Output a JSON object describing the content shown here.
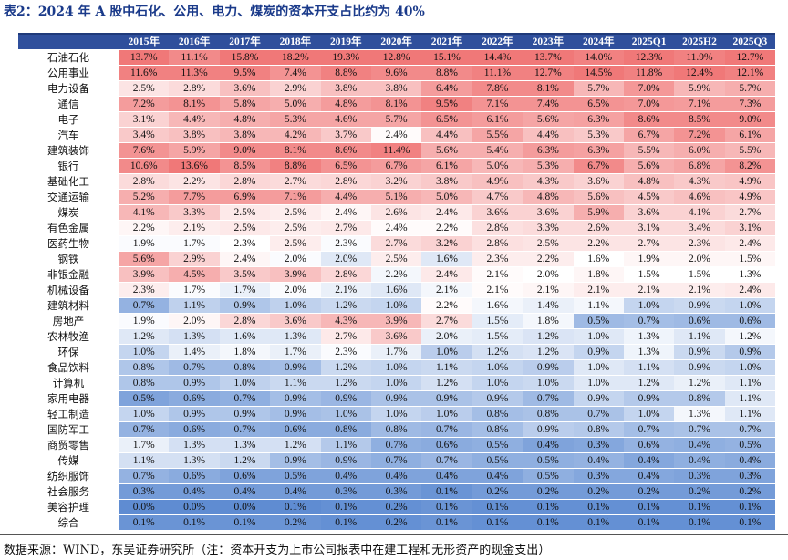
{
  "title": "表2：2024 年 A 股中石化、公用、电力、煤炭的资本开支占比约为 40%",
  "table": {
    "header": [
      "",
      "2015年",
      "2016年",
      "2017年",
      "2018年",
      "2019年",
      "2020年",
      "2021年",
      "2022年",
      "2023年",
      "2024年",
      "2025Q1",
      "2025H2",
      "2025Q3"
    ],
    "rows": [
      {
        "name": "石油石化",
        "values": [
          "13.7%",
          "11.1%",
          "15.8%",
          "18.2%",
          "19.3%",
          "12.8%",
          "15.1%",
          "14.4%",
          "13.7%",
          "14.0%",
          "12.3%",
          "11.9%",
          "12.7%"
        ]
      },
      {
        "name": "公用事业",
        "values": [
          "11.6%",
          "11.3%",
          "9.5%",
          "7.4%",
          "8.8%",
          "9.6%",
          "8.8%",
          "11.1%",
          "12.7%",
          "14.5%",
          "11.8%",
          "12.4%",
          "12.1%"
        ]
      },
      {
        "name": "电力设备",
        "values": [
          "2.5%",
          "2.8%",
          "3.6%",
          "2.9%",
          "3.8%",
          "3.8%",
          "6.4%",
          "7.8%",
          "8.1%",
          "5.7%",
          "7.0%",
          "5.9%",
          "5.7%"
        ]
      },
      {
        "name": "通信",
        "values": [
          "7.2%",
          "8.1%",
          "5.8%",
          "5.0%",
          "4.8%",
          "8.1%",
          "9.5%",
          "7.1%",
          "7.4%",
          "6.5%",
          "7.0%",
          "7.1%",
          "7.3%"
        ]
      },
      {
        "name": "电子",
        "values": [
          "3.1%",
          "4.4%",
          "4.8%",
          "5.3%",
          "4.6%",
          "5.7%",
          "6.5%",
          "6.1%",
          "5.6%",
          "6.3%",
          "8.6%",
          "8.5%",
          "9.0%"
        ]
      },
      {
        "name": "汽车",
        "values": [
          "3.4%",
          "3.8%",
          "3.8%",
          "4.2%",
          "3.7%",
          "2.4%",
          "4.4%",
          "5.5%",
          "4.4%",
          "5.3%",
          "6.7%",
          "7.2%",
          "6.1%"
        ]
      },
      {
        "name": "建筑装饰",
        "values": [
          "7.6%",
          "5.9%",
          "9.0%",
          "8.1%",
          "8.6%",
          "11.4%",
          "5.6%",
          "5.4%",
          "6.3%",
          "6.3%",
          "5.5%",
          "6.0%",
          "5.5%"
        ]
      },
      {
        "name": "银行",
        "values": [
          "10.6%",
          "13.6%",
          "8.5%",
          "8.8%",
          "6.5%",
          "6.7%",
          "6.1%",
          "5.0%",
          "5.3%",
          "6.7%",
          "5.6%",
          "6.8%",
          "8.2%"
        ]
      },
      {
        "name": "基础化工",
        "values": [
          "2.8%",
          "2.2%",
          "2.8%",
          "2.7%",
          "2.8%",
          "3.2%",
          "3.8%",
          "4.9%",
          "4.3%",
          "3.6%",
          "4.8%",
          "4.3%",
          "4.9%"
        ]
      },
      {
        "name": "交通运输",
        "values": [
          "5.2%",
          "7.7%",
          "6.9%",
          "7.1%",
          "4.4%",
          "5.1%",
          "5.0%",
          "4.7%",
          "4.8%",
          "5.6%",
          "4.5%",
          "4.6%",
          "4.9%"
        ]
      },
      {
        "name": "煤炭",
        "values": [
          "4.1%",
          "3.3%",
          "2.5%",
          "2.5%",
          "2.4%",
          "2.6%",
          "2.4%",
          "3.6%",
          "3.6%",
          "5.9%",
          "3.6%",
          "4.1%",
          "2.7%"
        ]
      },
      {
        "name": "有色金属",
        "values": [
          "2.2%",
          "2.1%",
          "2.5%",
          "2.5%",
          "2.7%",
          "2.4%",
          "2.2%",
          "2.8%",
          "3.3%",
          "2.6%",
          "3.1%",
          "3.4%",
          "3.1%"
        ]
      },
      {
        "name": "医药生物",
        "values": [
          "1.9%",
          "1.7%",
          "2.3%",
          "2.5%",
          "2.3%",
          "2.7%",
          "3.2%",
          "2.8%",
          "2.5%",
          "2.2%",
          "2.7%",
          "2.3%",
          "2.4%"
        ]
      },
      {
        "name": "钢铁",
        "values": [
          "5.6%",
          "2.9%",
          "2.4%",
          "2.0%",
          "2.0%",
          "2.5%",
          "1.6%",
          "2.3%",
          "2.2%",
          "1.6%",
          "1.9%",
          "2.0%",
          "1.5%"
        ]
      },
      {
        "name": "非银金融",
        "values": [
          "3.9%",
          "4.5%",
          "3.5%",
          "3.9%",
          "2.8%",
          "2.2%",
          "2.4%",
          "2.1%",
          "2.0%",
          "1.8%",
          "1.5%",
          "1.5%",
          "1.3%"
        ]
      },
      {
        "name": "机械设备",
        "values": [
          "2.3%",
          "1.7%",
          "1.7%",
          "2.0%",
          "2.1%",
          "1.6%",
          "2.1%",
          "2.1%",
          "2.1%",
          "2.1%",
          "2.1%",
          "2.1%",
          "2.4%"
        ]
      },
      {
        "name": "建筑材料",
        "values": [
          "0.7%",
          "1.1%",
          "0.9%",
          "1.0%",
          "1.2%",
          "1.0%",
          "2.2%",
          "1.6%",
          "1.4%",
          "1.1%",
          "1.0%",
          "0.9%",
          "1.0%"
        ]
      },
      {
        "name": "房地产",
        "values": [
          "1.9%",
          "2.0%",
          "2.8%",
          "3.6%",
          "4.3%",
          "3.9%",
          "2.7%",
          "1.5%",
          "1.8%",
          "0.5%",
          "0.7%",
          "0.6%",
          "0.6%"
        ]
      },
      {
        "name": "农林牧渔",
        "values": [
          "1.2%",
          "1.3%",
          "1.6%",
          "1.3%",
          "2.7%",
          "3.6%",
          "2.0%",
          "1.5%",
          "1.2%",
          "1.0%",
          "1.3%",
          "1.1%",
          "1.2%"
        ]
      },
      {
        "name": "环保",
        "values": [
          "1.0%",
          "1.4%",
          "1.8%",
          "1.7%",
          "2.3%",
          "1.7%",
          "1.0%",
          "1.2%",
          "1.2%",
          "0.9%",
          "1.3%",
          "0.9%",
          "0.9%"
        ]
      },
      {
        "name": "食品饮料",
        "values": [
          "0.8%",
          "0.7%",
          "0.8%",
          "0.9%",
          "1.2%",
          "1.0%",
          "1.1%",
          "1.0%",
          "0.9%",
          "1.0%",
          "1.1%",
          "0.9%",
          "1.0%"
        ]
      },
      {
        "name": "计算机",
        "values": [
          "0.8%",
          "0.9%",
          "1.0%",
          "1.1%",
          "1.2%",
          "1.0%",
          "1.2%",
          "1.0%",
          "1.0%",
          "1.0%",
          "1.2%",
          "1.2%",
          "1.1%"
        ]
      },
      {
        "name": "家用电器",
        "values": [
          "0.5%",
          "0.6%",
          "0.7%",
          "0.9%",
          "0.9%",
          "0.9%",
          "0.9%",
          "0.9%",
          "0.7%",
          "0.9%",
          "0.9%",
          "0.8%",
          "1.1%"
        ]
      },
      {
        "name": "轻工制造",
        "values": [
          "1.0%",
          "0.9%",
          "0.9%",
          "0.9%",
          "1.0%",
          "1.0%",
          "1.0%",
          "0.8%",
          "0.8%",
          "0.7%",
          "1.0%",
          "1.3%",
          "1.1%"
        ]
      },
      {
        "name": "国防军工",
        "values": [
          "0.7%",
          "0.6%",
          "0.7%",
          "0.6%",
          "0.8%",
          "0.8%",
          "0.7%",
          "0.8%",
          "0.9%",
          "0.8%",
          "0.7%",
          "0.7%",
          "0.7%"
        ]
      },
      {
        "name": "商贸零售",
        "values": [
          "1.7%",
          "1.3%",
          "1.3%",
          "1.2%",
          "1.1%",
          "0.7%",
          "0.6%",
          "0.5%",
          "0.4%",
          "0.3%",
          "0.6%",
          "0.4%",
          "0.5%"
        ]
      },
      {
        "name": "传媒",
        "values": [
          "1.1%",
          "1.3%",
          "1.2%",
          "0.9%",
          "0.9%",
          "0.7%",
          "0.7%",
          "0.5%",
          "0.5%",
          "0.4%",
          "0.4%",
          "0.4%",
          "0.4%"
        ]
      },
      {
        "name": "纺织服饰",
        "values": [
          "0.7%",
          "0.6%",
          "0.6%",
          "0.5%",
          "0.4%",
          "0.4%",
          "0.4%",
          "0.4%",
          "0.5%",
          "0.3%",
          "0.4%",
          "0.3%",
          "0.3%"
        ]
      },
      {
        "name": "社会服务",
        "values": [
          "0.3%",
          "0.4%",
          "0.4%",
          "0.4%",
          "0.3%",
          "0.3%",
          "0.1%",
          "0.2%",
          "0.2%",
          "0.2%",
          "0.2%",
          "0.2%",
          "0.2%"
        ]
      },
      {
        "name": "美容护理",
        "values": [
          "0.0%",
          "0.0%",
          "0.0%",
          "0.1%",
          "0.1%",
          "0.2%",
          "0.1%",
          "0.1%",
          "0.1%",
          "0.1%",
          "0.1%",
          "0.1%",
          "0.1%"
        ]
      },
      {
        "name": "综合",
        "values": [
          "0.1%",
          "0.1%",
          "0.1%",
          "0.2%",
          "0.1%",
          "0.2%",
          "0.1%",
          "0.1%",
          "0.1%",
          "0.1%",
          "0.1%",
          "0.1%",
          "0.1%"
        ]
      }
    ]
  },
  "source": "数据来源：WIND，东吴证券研究所（注：资本开支为上市公司报表中在建工程和无形资产的现金支出）"
}
